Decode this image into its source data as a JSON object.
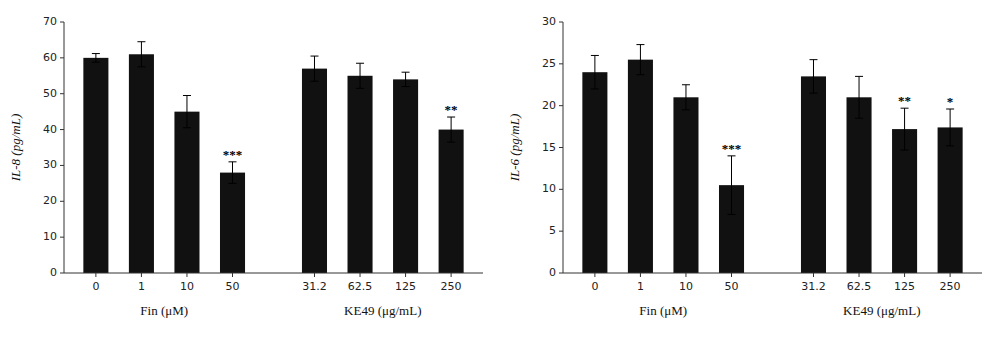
{
  "chart_data": [
    {
      "type": "bar",
      "ylabel": "IL-8 (pg/mL)",
      "categories": [
        "0",
        "1",
        "10",
        "50",
        "31.2",
        "62.5",
        "125",
        "250"
      ],
      "values": [
        60,
        61,
        45,
        28,
        57,
        55,
        54,
        40
      ],
      "errors": [
        1.2,
        3.5,
        4.5,
        3.0,
        3.5,
        3.5,
        2.0,
        3.5
      ],
      "color": "#111111",
      "ylim": [
        0,
        70
      ],
      "yticks": [
        0,
        10,
        20,
        30,
        40,
        50,
        60,
        70
      ],
      "grid": false,
      "annotations": [
        {
          "text": "***",
          "category": "50"
        },
        {
          "text": "**",
          "category": "250"
        }
      ],
      "groups": [
        {
          "label": "Fin (μM)",
          "categories": [
            "0",
            "1",
            "10",
            "50"
          ]
        },
        {
          "label": "KE49 (μg/mL)",
          "categories": [
            "31.2",
            "62.5",
            "125",
            "250"
          ]
        }
      ]
    },
    {
      "type": "bar",
      "ylabel": "IL-6 (pg/mL)",
      "categories": [
        "0",
        "1",
        "10",
        "50",
        "31.2",
        "62.5",
        "125",
        "250"
      ],
      "values": [
        24,
        25.5,
        21,
        10.5,
        23.5,
        21,
        17.2,
        17.4
      ],
      "errors": [
        2.0,
        1.8,
        1.5,
        3.5,
        2.0,
        2.5,
        2.5,
        2.2
      ],
      "color": "#111111",
      "ylim": [
        0,
        30
      ],
      "yticks": [
        0,
        5,
        10,
        15,
        20,
        25,
        30
      ],
      "grid": false,
      "annotations": [
        {
          "text": "***",
          "category": "50"
        },
        {
          "text": "**",
          "category": "125"
        },
        {
          "text": "*",
          "category": "250"
        }
      ],
      "groups": [
        {
          "label": "Fin (μM)",
          "categories": [
            "0",
            "1",
            "10",
            "50"
          ]
        },
        {
          "label": "KE49 (μg/mL)",
          "categories": [
            "31.2",
            "62.5",
            "125",
            "250"
          ]
        }
      ]
    }
  ]
}
